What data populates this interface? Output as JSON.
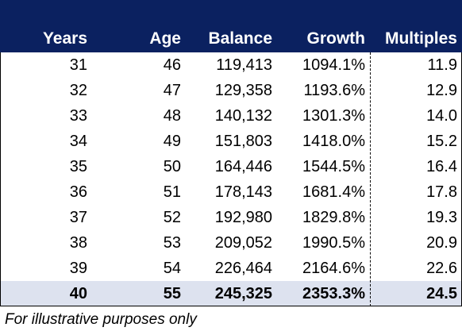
{
  "table": {
    "headers": [
      "Years",
      "Age",
      "Balance",
      "Growth",
      "Multiples"
    ],
    "rows": [
      [
        "31",
        "46",
        "119,413",
        "1094.1%",
        "11.9"
      ],
      [
        "32",
        "47",
        "129,358",
        "1193.6%",
        "12.9"
      ],
      [
        "33",
        "48",
        "140,132",
        "1301.3%",
        "14.0"
      ],
      [
        "34",
        "49",
        "151,803",
        "1418.0%",
        "15.2"
      ],
      [
        "35",
        "50",
        "164,446",
        "1544.5%",
        "16.4"
      ],
      [
        "36",
        "51",
        "178,143",
        "1681.4%",
        "17.8"
      ],
      [
        "37",
        "52",
        "192,980",
        "1829.8%",
        "19.3"
      ],
      [
        "38",
        "53",
        "209,052",
        "1990.5%",
        "20.9"
      ],
      [
        "39",
        "54",
        "226,464",
        "2164.6%",
        "22.6"
      ],
      [
        "40",
        "55",
        "245,325",
        "2353.3%",
        "24.5"
      ]
    ]
  },
  "footnote": "For illustrative purposes only"
}
